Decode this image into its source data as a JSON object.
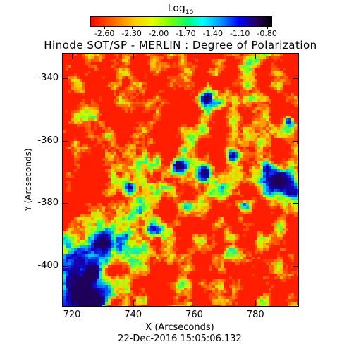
{
  "colorbar": {
    "title": "Log",
    "title_sub": "10",
    "tick_labels": [
      "-2.60",
      "-2.30",
      "-2.00",
      "-1.70",
      "-1.40",
      "-1.10",
      "-0.80"
    ],
    "range": [
      -2.75,
      -0.75
    ]
  },
  "title": "Hinode SOT/SP - MERLIN : Degree of Polarization",
  "axes": {
    "xlabel": "X (Arcseconds)",
    "ylabel": "Y (Arcseconds)",
    "xticks": [
      "720",
      "740",
      "760",
      "780"
    ],
    "yticks": [
      "-340",
      "-360",
      "-380",
      "-400"
    ],
    "xlim": [
      717,
      794
    ],
    "ylim": [
      -413,
      -332
    ]
  },
  "timestamp": "22-Dec-2016 15:05:06.132",
  "colors": {
    "low": "#ff0000",
    "mid": "#ffff00",
    "high": "#0000ff"
  }
}
